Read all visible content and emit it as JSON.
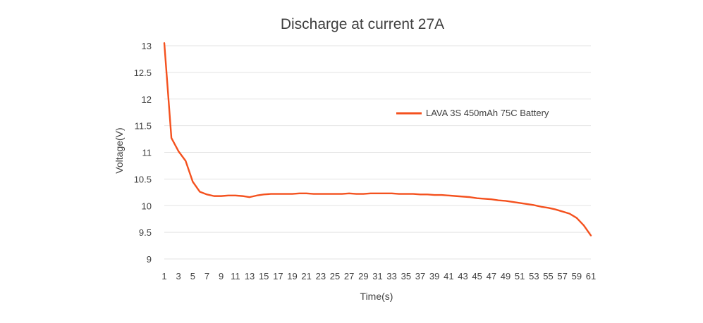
{
  "chart_data": {
    "type": "line",
    "title": "Discharge at current 27A",
    "xlabel": "Time(s)",
    "ylabel": "Voltage(V)",
    "ylim": [
      9,
      13
    ],
    "yticks": [
      "9",
      "9.5",
      "10",
      "10.5",
      "11",
      "11.5",
      "12",
      "12.5",
      "13"
    ],
    "ytick_values": [
      9,
      9.5,
      10,
      10.5,
      11,
      11.5,
      12,
      12.5,
      13
    ],
    "x": [
      1,
      2,
      3,
      4,
      5,
      6,
      7,
      8,
      9,
      10,
      11,
      12,
      13,
      14,
      15,
      16,
      17,
      18,
      19,
      20,
      21,
      22,
      23,
      24,
      25,
      26,
      27,
      28,
      29,
      30,
      31,
      32,
      33,
      34,
      35,
      36,
      37,
      38,
      39,
      40,
      41,
      42,
      43,
      44,
      45,
      46,
      47,
      48,
      49,
      50,
      51,
      52,
      53,
      54,
      55,
      56,
      57,
      58,
      59,
      60,
      61
    ],
    "xtick_labels": [
      "1",
      "3",
      "5",
      "7",
      "9",
      "11",
      "13",
      "15",
      "17",
      "19",
      "21",
      "23",
      "25",
      "27",
      "29",
      "31",
      "33",
      "35",
      "37",
      "39",
      "41",
      "43",
      "45",
      "47",
      "49",
      "51",
      "53",
      "55",
      "57",
      "59",
      "61"
    ],
    "grid": "horizontal",
    "legend_position": "right",
    "series": [
      {
        "name": "LAVA 3S 450mAh 75C Battery",
        "color": "#f4511e",
        "values": [
          13.05,
          11.27,
          11.02,
          10.84,
          10.45,
          10.26,
          10.21,
          10.18,
          10.18,
          10.19,
          10.19,
          10.18,
          10.16,
          10.19,
          10.21,
          10.22,
          10.22,
          10.22,
          10.22,
          10.23,
          10.23,
          10.22,
          10.22,
          10.22,
          10.22,
          10.22,
          10.23,
          10.22,
          10.22,
          10.23,
          10.23,
          10.23,
          10.23,
          10.22,
          10.22,
          10.22,
          10.21,
          10.21,
          10.2,
          10.2,
          10.19,
          10.18,
          10.17,
          10.16,
          10.14,
          10.13,
          10.12,
          10.1,
          10.09,
          10.07,
          10.05,
          10.03,
          10.01,
          9.98,
          9.96,
          9.93,
          9.89,
          9.85,
          9.77,
          9.63,
          9.44
        ]
      }
    ]
  }
}
